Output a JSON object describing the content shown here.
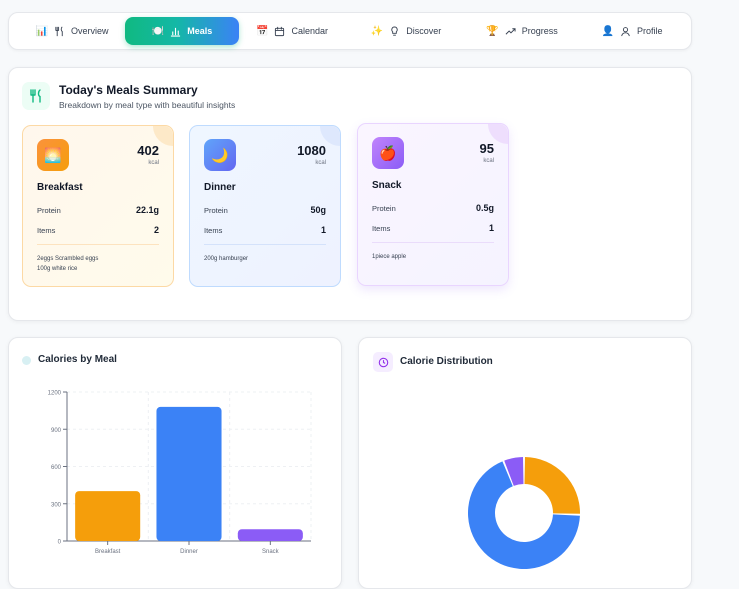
{
  "nav": {
    "items": [
      {
        "emoji": "📊",
        "label": "Overview"
      },
      {
        "emoji": "🍽️",
        "label": "Meals"
      },
      {
        "emoji": "📅",
        "label": "Calendar"
      },
      {
        "emoji": "✨",
        "label": "Discover"
      },
      {
        "emoji": "🏆",
        "label": "Progress"
      },
      {
        "emoji": "👤",
        "label": "Profile"
      }
    ],
    "active": "Meals"
  },
  "summary": {
    "title": "Today's Meals Summary",
    "subtitle": "Breakdown by meal type with beautiful insights"
  },
  "meals": [
    {
      "name": "Breakfast",
      "emoji": "🌅",
      "kcal": "402",
      "unit": "kcal",
      "protein_label": "Protein",
      "protein": "22.1g",
      "items_label": "Items",
      "items": "2",
      "foods": [
        "2eggs Scrambled eggs",
        "100g white rice"
      ]
    },
    {
      "name": "Dinner",
      "emoji": "🌙",
      "kcal": "1080",
      "unit": "kcal",
      "protein_label": "Protein",
      "protein": "50g",
      "items_label": "Items",
      "items": "1",
      "foods": [
        "200g hamburger"
      ]
    },
    {
      "name": "Snack",
      "emoji": "🍎",
      "kcal": "95",
      "unit": "kcal",
      "protein_label": "Protein",
      "protein": "0.5g",
      "items_label": "Items",
      "items": "1",
      "foods": [
        "1piece apple"
      ]
    }
  ],
  "bar_card": {
    "title": "Calories by Meal"
  },
  "pie_card": {
    "title": "Calorie Distribution"
  },
  "colors": {
    "breakfast": "#f59e0b",
    "dinner": "#3b82f6",
    "snack": "#8b5cf6",
    "accent": "#10b981"
  },
  "chart_data": [
    {
      "type": "bar",
      "categories": [
        "Breakfast",
        "Dinner",
        "Snack"
      ],
      "values": [
        402,
        1080,
        95
      ],
      "ylim": [
        0,
        1200
      ],
      "yticks": [
        0,
        300,
        600,
        900,
        1200
      ],
      "grid": true
    },
    {
      "type": "pie",
      "donut": true,
      "labels": [
        "Breakfast",
        "Dinner",
        "Snack"
      ],
      "values": [
        402,
        1080,
        95
      ]
    }
  ]
}
